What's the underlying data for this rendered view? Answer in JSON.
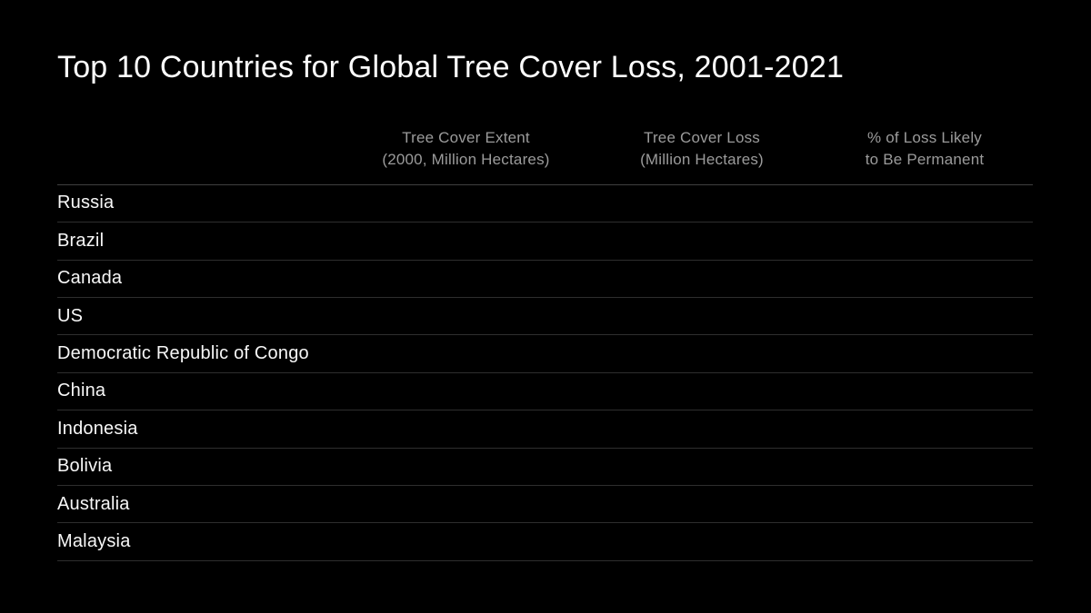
{
  "slide": {
    "title": "Top 10 Countries for Global Tree Cover Loss, 2001-2021",
    "colors": {
      "background": "#000000",
      "title_text": "#ffffff",
      "header_text": "#9b9b9b",
      "row_text": "#f7f7f7",
      "header_rule": "#404040",
      "row_rule": "#2e2e2e"
    }
  },
  "table": {
    "headers": {
      "country": "",
      "extent": "Tree Cover Extent\n(2000, Million Hectares)",
      "loss": "Tree Cover Loss\n(Million Hectares)",
      "permanent": "% of Loss Likely\nto Be Permanent"
    },
    "rows": [
      {
        "country": "Russia",
        "extent": "",
        "loss": "",
        "permanent": ""
      },
      {
        "country": "Brazil",
        "extent": "",
        "loss": "",
        "permanent": ""
      },
      {
        "country": "Canada",
        "extent": "",
        "loss": "",
        "permanent": ""
      },
      {
        "country": "US",
        "extent": "",
        "loss": "",
        "permanent": ""
      },
      {
        "country": "Democratic Republic of Congo",
        "extent": "",
        "loss": "",
        "permanent": ""
      },
      {
        "country": "China",
        "extent": "",
        "loss": "",
        "permanent": ""
      },
      {
        "country": "Indonesia",
        "extent": "",
        "loss": "",
        "permanent": ""
      },
      {
        "country": "Bolivia",
        "extent": "",
        "loss": "",
        "permanent": ""
      },
      {
        "country": "Australia",
        "extent": "",
        "loss": "",
        "permanent": ""
      },
      {
        "country": "Malaysia",
        "extent": "",
        "loss": "",
        "permanent": ""
      }
    ]
  },
  "chart_data": {
    "type": "table",
    "title": "Top 10 Countries for Global Tree Cover Loss, 2001-2021",
    "columns": [
      "Country",
      "Tree Cover Extent (2000, Million Hectares)",
      "Tree Cover Loss (Million Hectares)",
      "% of Loss Likely to Be Permanent"
    ],
    "rows": [
      [
        "Russia",
        "",
        "",
        ""
      ],
      [
        "Brazil",
        "",
        "",
        ""
      ],
      [
        "Canada",
        "",
        "",
        ""
      ],
      [
        "US",
        "",
        "",
        ""
      ],
      [
        "Democratic Republic of Congo",
        "",
        "",
        ""
      ],
      [
        "China",
        "",
        "",
        ""
      ],
      [
        "Indonesia",
        "",
        "",
        ""
      ],
      [
        "Bolivia",
        "",
        "",
        ""
      ],
      [
        "Australia",
        "",
        "",
        ""
      ],
      [
        "Malaysia",
        "",
        "",
        ""
      ]
    ]
  }
}
